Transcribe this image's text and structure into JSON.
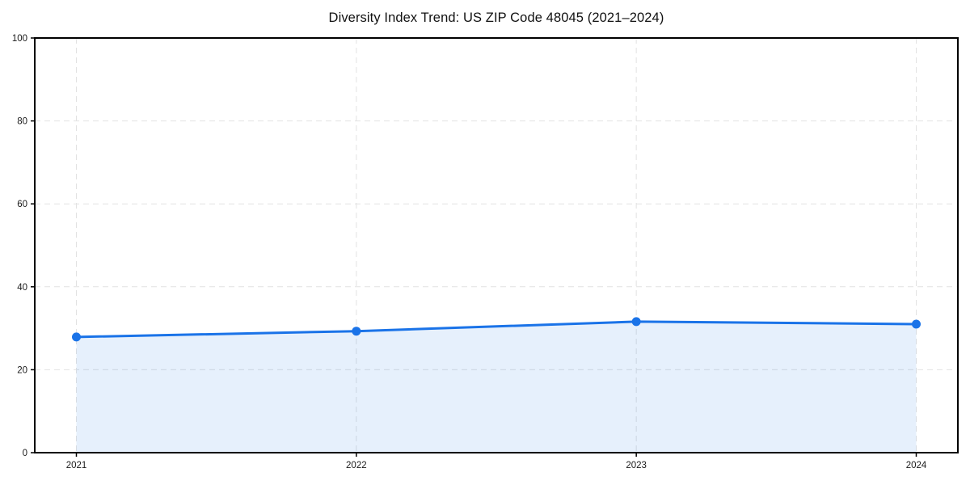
{
  "chart_data": {
    "type": "line",
    "title": "Diversity Index Trend: US ZIP Code 48045 (2021–2024)",
    "x": [
      "2021",
      "2022",
      "2023",
      "2024"
    ],
    "series": [
      {
        "name": "Diversity Index",
        "values": [
          27.9,
          29.3,
          31.6,
          31.0
        ]
      }
    ],
    "xlabel": "",
    "ylabel": "",
    "ylim": [
      0,
      100
    ],
    "yticks": [
      0,
      20,
      40,
      60,
      80,
      100
    ],
    "grid": true,
    "grid_style": "dashed",
    "legend": "none",
    "area_fill": true,
    "marker": "circle",
    "colors": {
      "line": "#1a73e8",
      "marker": "#1a73e8",
      "fill": "rgba(26,115,232,0.11)",
      "grid": "#e2e2e2",
      "spine": "#000000",
      "tick_label": "#1a1a1a",
      "title": "#111111",
      "background": "#ffffff"
    }
  }
}
